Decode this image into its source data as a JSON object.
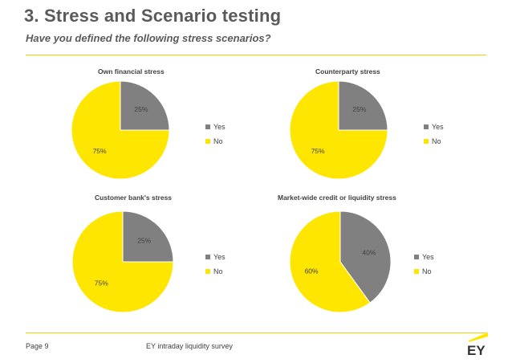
{
  "title": "3. Stress and Scenario testing",
  "subtitle": "Have you defined the following stress scenarios?",
  "colors": {
    "yes": "#808080",
    "no": "#ffe600",
    "accent": "#ffe600",
    "text": "#404040"
  },
  "footer": {
    "page": "Page 9",
    "source": "EY intraday liquidity survey",
    "logo_text": "EY"
  },
  "chart_data": [
    {
      "type": "pie",
      "title": "Own financial stress",
      "labels": [
        "Yes",
        "No"
      ],
      "values": [
        25,
        75
      ],
      "value_labels": [
        "25%",
        "75%"
      ],
      "legend": "right"
    },
    {
      "type": "pie",
      "title": "Counterparty stress",
      "labels": [
        "Yes",
        "No"
      ],
      "values": [
        25,
        75
      ],
      "value_labels": [
        "25%",
        "75%"
      ],
      "legend": "right"
    },
    {
      "type": "pie",
      "title": "Customer bank's stress",
      "labels": [
        "Yes",
        "No"
      ],
      "values": [
        25,
        75
      ],
      "value_labels": [
        "25%",
        "75%"
      ],
      "legend": "right"
    },
    {
      "type": "pie",
      "title": "Market-wide credit or liquidity stress",
      "labels": [
        "Yes",
        "No"
      ],
      "values": [
        40,
        60
      ],
      "value_labels": [
        "40%",
        "60%"
      ],
      "legend": "right"
    }
  ]
}
